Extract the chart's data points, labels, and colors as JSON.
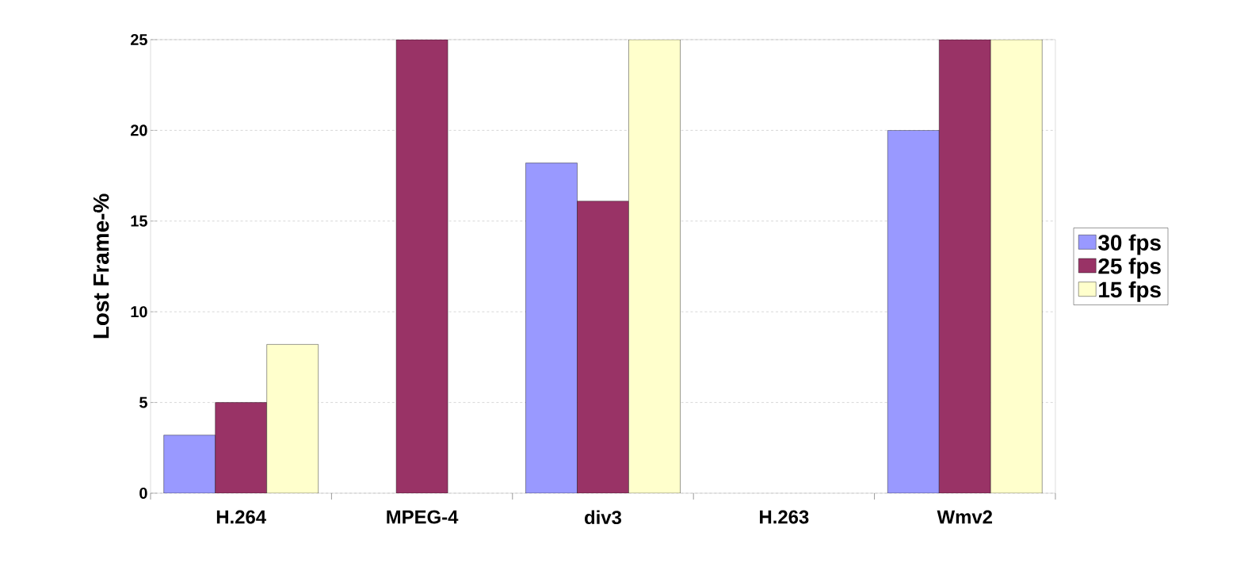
{
  "chart_data": {
    "type": "bar",
    "ylabel": "Lost Frame-%",
    "categories": [
      "H.264",
      "MPEG-4",
      "div3",
      "H.263",
      "Wmv2"
    ],
    "series": [
      {
        "name": "30 fps",
        "color": "#9999ff",
        "values": [
          3.2,
          null,
          18.2,
          null,
          20
        ]
      },
      {
        "name": "25 fps",
        "color": "#993366",
        "values": [
          5.0,
          25,
          16.1,
          null,
          25
        ]
      },
      {
        "name": "15 fps",
        "color": "#ffffcc",
        "values": [
          8.2,
          null,
          25,
          null,
          25
        ]
      }
    ],
    "ylim": [
      0,
      25
    ],
    "yticks": [
      0,
      5,
      10,
      15,
      20,
      25
    ],
    "grid": "y",
    "legend": "right"
  }
}
